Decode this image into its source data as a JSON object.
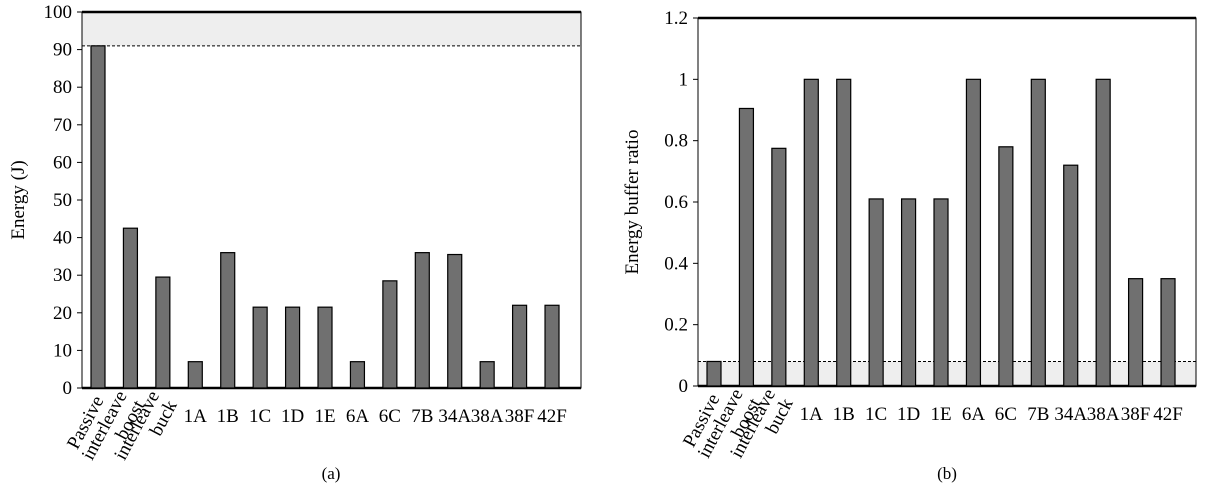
{
  "chart_data": [
    {
      "type": "bar",
      "caption": "(a)",
      "title": "",
      "xlabel": "",
      "ylabel": "Energy (J)",
      "ylim": [
        0,
        100
      ],
      "yticks": [
        "0",
        "10",
        "20",
        "30",
        "40",
        "50",
        "60",
        "70",
        "80",
        "90",
        "100"
      ],
      "categories": [
        "Passive",
        "interleave boost",
        "interleave buck",
        "1A",
        "1B",
        "1C",
        "1D",
        "1E",
        "6A",
        "6C",
        "7B",
        "34A",
        "38A",
        "38F",
        "42F"
      ],
      "values": [
        91,
        42.5,
        29.5,
        7,
        36,
        21.5,
        21.5,
        21.5,
        7,
        28.5,
        36,
        35.5,
        7,
        22,
        22
      ],
      "reference_line": 91,
      "shaded_band": [
        91,
        100
      ],
      "bar_color": "#707070",
      "band_color": "#eeeeee",
      "grid": false
    },
    {
      "type": "bar",
      "caption": "(b)",
      "title": "",
      "xlabel": "",
      "ylabel": "Energy buffer ratio",
      "ylim": [
        0,
        1.2
      ],
      "yticks": [
        "0",
        "0.2",
        "0.4",
        "0.6",
        "0.8",
        "1",
        "1.2"
      ],
      "categories": [
        "Passive",
        "interleave boost",
        "interleave buck",
        "1A",
        "1B",
        "1C",
        "1D",
        "1E",
        "6A",
        "6C",
        "7B",
        "34A",
        "38A",
        "38F",
        "42F"
      ],
      "values": [
        0.08,
        0.905,
        0.775,
        1,
        1,
        0.61,
        0.61,
        0.61,
        1,
        0.78,
        1,
        0.72,
        1,
        0.35,
        0.35
      ],
      "reference_line": 0.08,
      "shaded_band": [
        0,
        0.08
      ],
      "bar_color": "#707070",
      "band_color": "#eeeeee",
      "grid": false
    }
  ]
}
